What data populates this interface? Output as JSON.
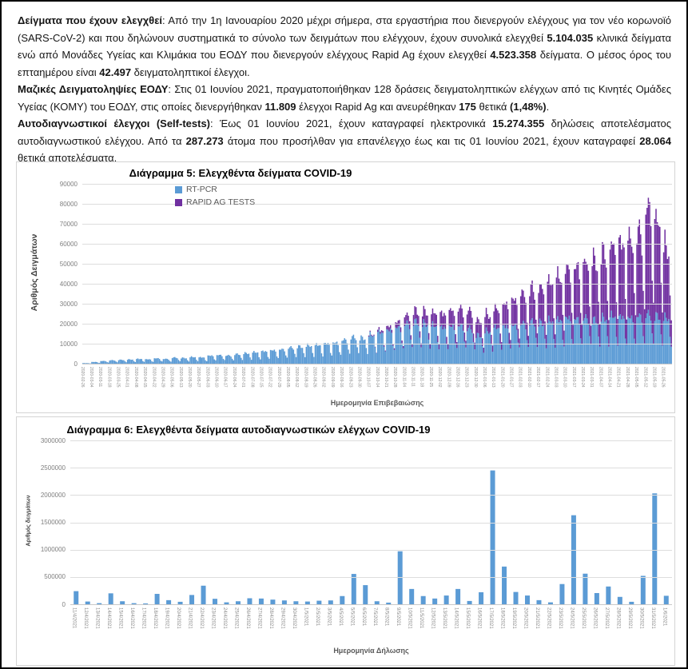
{
  "paragraphs": [
    {
      "segments": [
        {
          "bold": true,
          "text": "Δείγματα που έχουν ελεγχθεί"
        },
        {
          "bold": false,
          "text": ": Από την 1η Ιανουαρίου 2020 μέχρι σήμερα, στα εργαστήρια που διενεργούν ελέγχους για τον νέο κορωνοϊό (SARS-CoV-2) και που δηλώνουν συστηματικά το σύνολο των δειγμάτων που ελέγχουν, έχουν συνολικά ελεγχθεί "
        },
        {
          "bold": true,
          "text": "5.104.035"
        },
        {
          "bold": false,
          "text": " κλινικά δείγματα ενώ από Μονάδες Υγείας και Κλιμάκια του ΕΟΔΥ που διενεργούν ελέγχους Rapid Ag έχουν ελεγχθεί "
        },
        {
          "bold": true,
          "text": "4.523.358"
        },
        {
          "bold": false,
          "text": " δείγματα. Ο μέσος όρος του επταημέρου είναι "
        },
        {
          "bold": true,
          "text": "42.497"
        },
        {
          "bold": false,
          "text": " δειγματοληπτικοί έλεγχοι."
        }
      ]
    },
    {
      "segments": [
        {
          "bold": true,
          "text": "Μαζικές Δειγματοληψίες ΕΟΔΥ"
        },
        {
          "bold": false,
          "text": ": Στις 01 Ιουνίου 2021, πραγματοποιήθηκαν 128 δράσεις δειγματοληπτικών ελέγχων από τις Κινητές Ομάδες Υγείας (ΚΟΜΥ) του ΕΟΔΥ, στις οποίες διενεργήθηκαν "
        },
        {
          "bold": true,
          "text": "11.809"
        },
        {
          "bold": false,
          "text": " έλεγχοι Rapid Ag και ανευρέθηκαν "
        },
        {
          "bold": true,
          "text": "175"
        },
        {
          "bold": false,
          "text": " θετικά "
        },
        {
          "bold": true,
          "text": "(1,48%)"
        },
        {
          "bold": false,
          "text": "."
        }
      ]
    },
    {
      "segments": [
        {
          "bold": true,
          "text": "Αυτοδιαγνωστικοί έλεγχοι (Self-tests)"
        },
        {
          "bold": false,
          "text": ": Έως 01 Ιουνίου 2021, έχουν καταγραφεί ηλεκτρονικά "
        },
        {
          "bold": true,
          "text": "15.274.355"
        },
        {
          "bold": false,
          "text": " δηλώσεις αποτελέσματος αυτοδιαγνωστικού ελέγχου. Από τα "
        },
        {
          "bold": true,
          "text": "287.273"
        },
        {
          "bold": false,
          "text": " άτομα που προσήλθαν για επανέλεγχο έως και τις 01 Ιουνίου 2021, έχουν καταγραφεί "
        },
        {
          "bold": true,
          "text": "28.064"
        },
        {
          "bold": false,
          "text": " θετικά αποτελέσματα."
        }
      ]
    }
  ],
  "chart_data": [
    {
      "type": "bar",
      "stacked": true,
      "title": "Διάγραμμα 5: Ελεγχθέντα δείγματα COVID-19",
      "xlabel": "Ημερομηνία Επιβεβαιώσης",
      "ylabel": "Αριθμός Δειγμάτων",
      "ylim": [
        0,
        90000
      ],
      "ytick_step": 10000,
      "grid": true,
      "legend_position": "top-left-inside",
      "note": "Daily stacked bars; x-axis ticks are weekly. Values are estimated weekly weekday-peak levels read from gridlines.",
      "categories": [
        "2020-02-26",
        "2020-03-04",
        "2020-03-11",
        "2020-03-18",
        "2020-03-25",
        "2020-04-01",
        "2020-04-08",
        "2020-04-15",
        "2020-04-22",
        "2020-04-29",
        "2020-05-06",
        "2020-05-13",
        "2020-05-20",
        "2020-05-27",
        "2020-06-03",
        "2020-06-10",
        "2020-06-17",
        "2020-06-24",
        "2020-07-01",
        "2020-07-08",
        "2020-07-15",
        "2020-07-22",
        "2020-07-29",
        "2020-08-05",
        "2020-08-12",
        "2020-08-19",
        "2020-08-26",
        "2020-09-02",
        "2020-09-09",
        "2020-09-16",
        "2020-09-23",
        "2020-09-30",
        "2020-10-07",
        "2020-10-14",
        "2020-10-21",
        "2020-10-28",
        "2020-11-04",
        "2020-11-11",
        "2020-11-18",
        "2020-11-25",
        "2020-12-02",
        "2020-12-09",
        "2020-12-16",
        "2020-12-23",
        "2020-12-30",
        "2021-01-06",
        "2021-01-13",
        "2021-01-20",
        "2021-01-27",
        "2021-02-03",
        "2021-02-10",
        "2021-02-17",
        "2021-02-24",
        "2021-03-03",
        "2021-03-10",
        "2021-03-17",
        "2021-03-24",
        "2021-03-31",
        "2021-04-07",
        "2021-04-14",
        "2021-04-21",
        "2021-04-28",
        "2021-05-05",
        "2021-05-12",
        "2021-05-19",
        "2021-05-26"
      ],
      "series": [
        {
          "name": "RT-PCR",
          "color": "#5B9BD5",
          "values": [
            300,
            900,
            1400,
            1800,
            2000,
            2200,
            2500,
            2300,
            2800,
            2500,
            3200,
            3000,
            3500,
            3300,
            4200,
            4500,
            4300,
            5000,
            5500,
            6000,
            6500,
            7000,
            7500,
            8500,
            9000,
            9500,
            9800,
            10500,
            11000,
            12500,
            14000,
            13500,
            15000,
            16500,
            17500,
            19000,
            21000,
            22000,
            21000,
            20000,
            19000,
            19500,
            20000,
            18500,
            15000,
            17000,
            19000,
            19500,
            20000,
            21000,
            22000,
            21500,
            22500,
            23000,
            24000,
            23500,
            24000,
            23000,
            24000,
            25000,
            24500,
            24000,
            25000,
            26000,
            25000,
            24000
          ]
        },
        {
          "name": "RAPID AG TESTS",
          "color": "#7030A0",
          "values": [
            0,
            0,
            0,
            0,
            0,
            0,
            0,
            0,
            0,
            0,
            0,
            0,
            0,
            0,
            0,
            0,
            0,
            0,
            0,
            0,
            0,
            0,
            0,
            0,
            0,
            0,
            0,
            0,
            0,
            0,
            0,
            0,
            500,
            1200,
            2000,
            3000,
            4500,
            6000,
            6500,
            7000,
            7500,
            8500,
            9000,
            9500,
            8000,
            9000,
            10000,
            12000,
            14000,
            16000,
            18000,
            19000,
            21000,
            23000,
            26000,
            28000,
            30000,
            32000,
            35000,
            38000,
            40000,
            42000,
            45000,
            58000,
            52000,
            38000
          ]
        }
      ]
    },
    {
      "type": "bar",
      "title": "Διάγραμμα 6: Ελεγχθέντα δείγματα αυτοδιαγνωστικών ελέγχων COVID-19",
      "xlabel": "Ημερομηνία Δήλωσης",
      "ylabel": "Αριθμός δειγμάτων",
      "ylim": [
        0,
        3000000
      ],
      "ytick_step": 500000,
      "grid": true,
      "bar_color": "#5B9BD5",
      "categories": [
        "11/4/2021",
        "12/4/2021",
        "13/4/2021",
        "14/4/2021",
        "15/4/2021",
        "16/4/2021",
        "17/4/2021",
        "18/4/2021",
        "19/4/2021",
        "20/4/2021",
        "21/4/2021",
        "22/4/2021",
        "23/4/2021",
        "24/4/2021",
        "25/4/2021",
        "26/4/2021",
        "27/4/2021",
        "28/4/2021",
        "29/4/2021",
        "30/4/2021",
        "1/5/2021",
        "2/5/2021",
        "3/5/2021",
        "4/5/2021",
        "5/5/2021",
        "6/5/2021",
        "7/5/2021",
        "8/5/2021",
        "9/5/2021",
        "10/5/2021",
        "11/5/2021",
        "12/5/2021",
        "13/5/2021",
        "14/5/2021",
        "15/5/2021",
        "16/5/2021",
        "17/5/2021",
        "18/5/2021",
        "19/5/2021",
        "20/5/2021",
        "21/5/2021",
        "22/5/2021",
        "23/5/2021",
        "24/5/2021",
        "25/5/2021",
        "26/5/2021",
        "27/5/2021",
        "28/5/2021",
        "29/5/2021",
        "30/5/2021",
        "31/5/2021",
        "1/6/2021"
      ],
      "values": [
        240000,
        50000,
        20000,
        200000,
        55000,
        20000,
        15000,
        190000,
        75000,
        45000,
        170000,
        340000,
        100000,
        35000,
        55000,
        110000,
        105000,
        85000,
        70000,
        55000,
        50000,
        65000,
        70000,
        150000,
        555000,
        350000,
        55000,
        30000,
        970000,
        280000,
        150000,
        105000,
        160000,
        280000,
        60000,
        220000,
        2450000,
        690000,
        225000,
        160000,
        75000,
        35000,
        370000,
        1630000,
        560000,
        205000,
        325000,
        135000,
        45000,
        520000,
        2030000,
        155000
      ]
    }
  ],
  "colors": {
    "rt_pcr": "#5B9BD5",
    "rapid_ag": "#7030A0",
    "gridline": "#dddddd",
    "tick_text": "#7f7f7f",
    "page_border": "#000000"
  }
}
